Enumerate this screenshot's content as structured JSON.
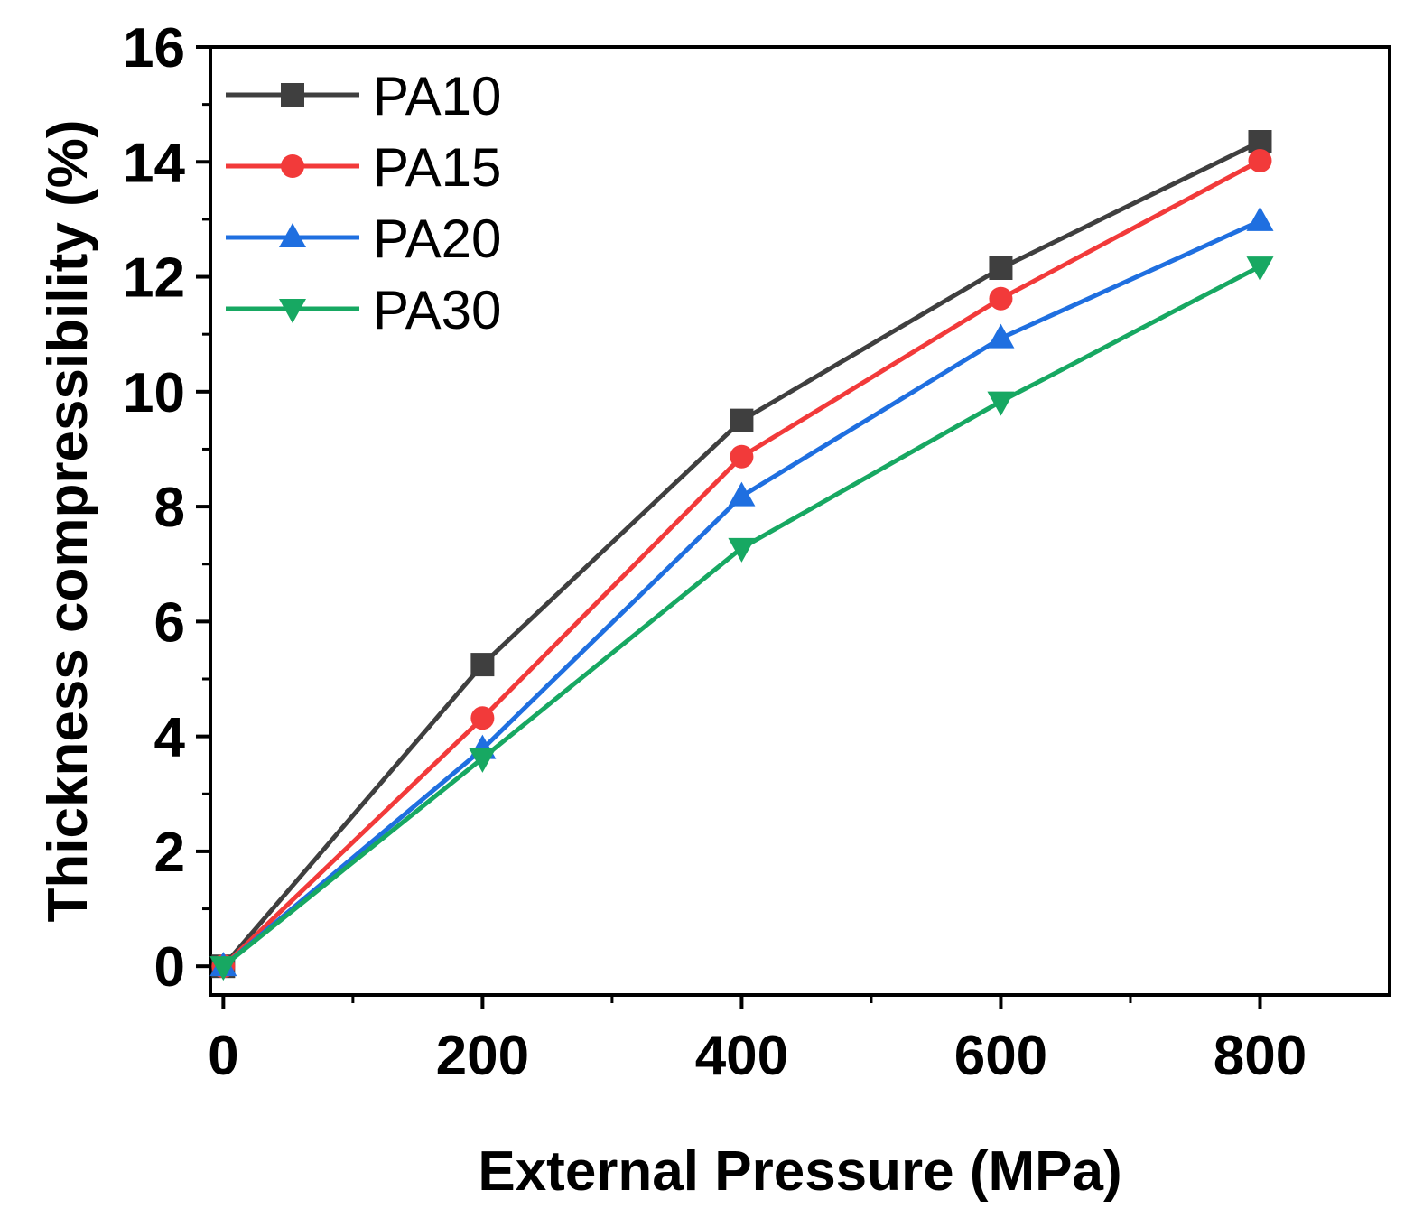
{
  "chart_data": {
    "type": "line",
    "title": "",
    "xlabel": "External Pressure (MPa)",
    "ylabel": "Thickness compressibility (%)",
    "xlim": [
      -10,
      900
    ],
    "ylim": [
      -0.5,
      16
    ],
    "x": [
      0,
      200,
      400,
      600,
      800
    ],
    "xticks": [
      0,
      200,
      400,
      600,
      800
    ],
    "xtick_labels": [
      "0",
      "200",
      "400",
      "600",
      "800"
    ],
    "yticks": [
      0,
      2,
      4,
      6,
      8,
      10,
      12,
      14,
      16
    ],
    "ytick_labels": [
      "0",
      "2",
      "4",
      "6",
      "8",
      "10",
      "12",
      "14",
      "16"
    ],
    "grid": false,
    "legend_position": "top-left",
    "series": [
      {
        "name": "PA10",
        "marker": "square",
        "color": "#3f3f3f",
        "values": [
          0,
          5.25,
          9.5,
          12.15,
          14.35
        ]
      },
      {
        "name": "PA15",
        "marker": "circle",
        "color": "#f23a3a",
        "values": [
          0,
          4.32,
          8.87,
          11.62,
          14.02
        ]
      },
      {
        "name": "PA20",
        "marker": "triangle-up",
        "color": "#1f6fe0",
        "values": [
          0,
          3.78,
          8.18,
          10.93,
          12.97
        ]
      },
      {
        "name": "PA30",
        "marker": "triangle-down",
        "color": "#17a862",
        "values": [
          0,
          3.62,
          7.28,
          9.83,
          12.18
        ]
      }
    ]
  }
}
